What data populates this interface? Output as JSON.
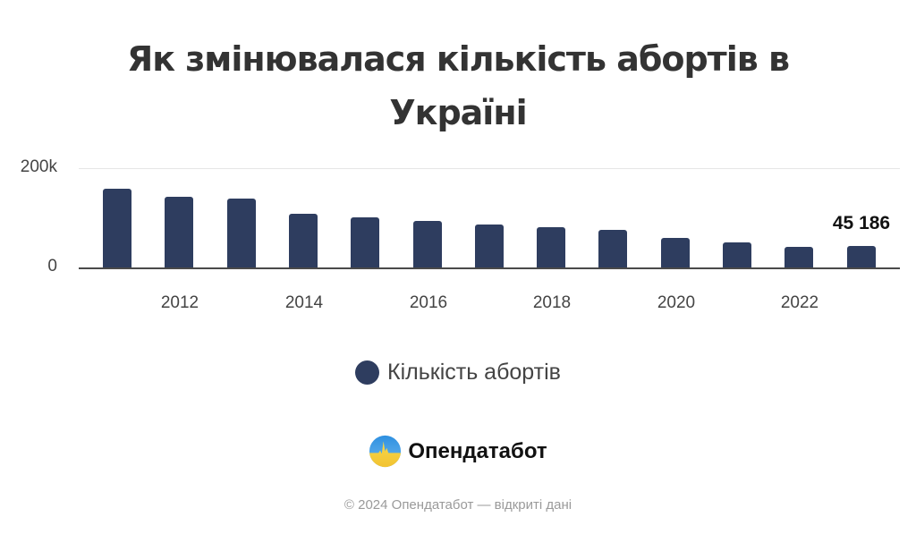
{
  "title": {
    "line1": "Як змінювалася кількість абортів в",
    "line2": "Україні"
  },
  "legend": {
    "label": "Кількість абортів",
    "color": "#2e3d5f"
  },
  "brand": {
    "name": "Опендатабот",
    "logo_icon": "opendatabot-logo-icon"
  },
  "footer": {
    "text": "© 2024 Опендатабот — відкриті дані"
  },
  "axis": {
    "y_ticks": [
      "200k",
      "0"
    ],
    "x_ticks": [
      "2012",
      "2014",
      "2016",
      "2018",
      "2020",
      "2022"
    ]
  },
  "annotation": {
    "last_value_label": "45 186"
  },
  "chart_data": {
    "type": "bar",
    "title": "Як змінювалася кількість абортів в Україні",
    "xlabel": "",
    "ylabel": "",
    "categories": [
      "2011",
      "2012",
      "2013",
      "2014",
      "2015",
      "2016",
      "2017",
      "2018",
      "2019",
      "2020",
      "2021",
      "2022",
      "2023"
    ],
    "series": [
      {
        "name": "Кількість абортів",
        "color": "#2e3d5f",
        "values": [
          159000,
          143000,
          140000,
          109000,
          101000,
          94000,
          88000,
          82000,
          76000,
          61000,
          52000,
          43000,
          45186
        ]
      }
    ],
    "ylim": [
      0,
      200000
    ],
    "y_tick_labels": [
      "0",
      "200k"
    ],
    "x_tick_labels": [
      "2012",
      "2014",
      "2016",
      "2018",
      "2020",
      "2022"
    ],
    "annotations": [
      {
        "category": "2023",
        "text": "45 186"
      }
    ],
    "grid": true,
    "legend_position": "bottom"
  }
}
